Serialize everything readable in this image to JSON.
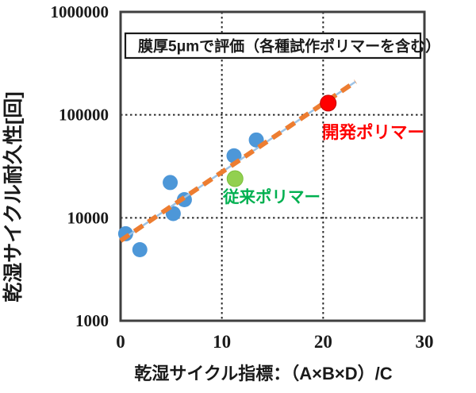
{
  "chart_data": {
    "type": "scatter",
    "title": "",
    "annotation": "膜厚5μmで評価（各種試作ポリマーを含む）",
    "xlabel": "乾湿サイクル指標：（A×B×D）/C",
    "ylabel": "乾湿サイクル耐久性[回]",
    "xlim": [
      0,
      30
    ],
    "ylim": [
      1000,
      1000000
    ],
    "y_scale": "log",
    "grid": true,
    "x_ticks": [
      0,
      10,
      20,
      30
    ],
    "y_ticks": [
      1000,
      10000,
      100000,
      1000000
    ],
    "x_gridlines": [
      10,
      20
    ],
    "y_gridlines": [
      10000,
      100000
    ],
    "series": [
      {
        "name": "試作ポリマー",
        "color": "#4D97D8",
        "radius": 9.5,
        "points": [
          {
            "x": 0.5,
            "y": 7000
          },
          {
            "x": 1.9,
            "y": 4900
          },
          {
            "x": 4.9,
            "y": 22000
          },
          {
            "x": 5.2,
            "y": 11000
          },
          {
            "x": 6.3,
            "y": 15000
          },
          {
            "x": 11.2,
            "y": 40000
          },
          {
            "x": 13.4,
            "y": 57000
          }
        ]
      },
      {
        "name": "従来ポリマー",
        "color": "#92D050",
        "label_color": "#00B050",
        "radius": 10,
        "points": [
          {
            "x": 11.3,
            "y": 24000
          }
        ]
      },
      {
        "name": "開発ポリマー",
        "color": "#FF0000",
        "label_color": "#FF0000",
        "radius": 10,
        "points": [
          {
            "x": 20.5,
            "y": 130000
          }
        ]
      }
    ],
    "trend_line": {
      "from": {
        "x": 0,
        "y": 6000
      },
      "to": {
        "x": 23.2,
        "y": 210000
      },
      "color": "#ED7D31",
      "under_color": "#9DC3E6",
      "style": "dashed"
    },
    "colors": {
      "grid": "#2b2b2b",
      "border": "#3f3f3f",
      "background": "#ffffff"
    }
  }
}
